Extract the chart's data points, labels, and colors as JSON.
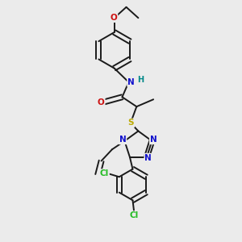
{
  "bg_color": "#ebebeb",
  "bond_color": "#1a1a1a",
  "bond_width": 1.4,
  "atom_colors": {
    "N": "#1010cc",
    "O": "#cc1010",
    "S": "#bbaa00",
    "Cl": "#22bb22",
    "H": "#008888",
    "C": "#1a1a1a"
  },
  "font_size": 7.5
}
